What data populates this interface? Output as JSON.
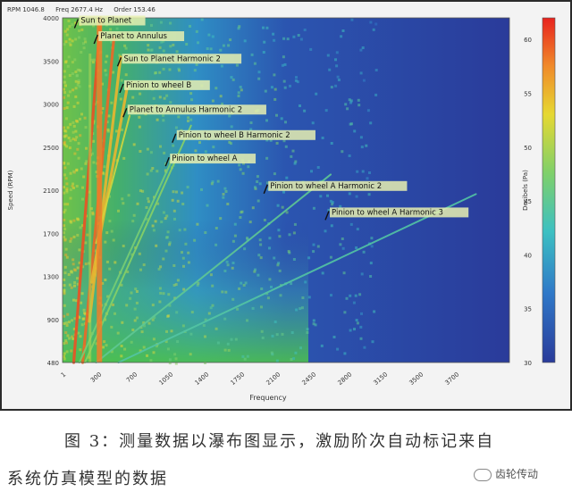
{
  "header_info": [
    "RPM 1046.8",
    "Freq 2677.4 Hz",
    "Order 153.46"
  ],
  "chart_data": {
    "type": "heatmap",
    "title": "",
    "xlabel": "Frequency",
    "ylabel": "Speed (RPM)",
    "colorbar_label": "Decibels (Pa)",
    "xlim": [
      0,
      4000
    ],
    "ylim": [
      480,
      4000
    ],
    "x_ticks": [
      "1",
      "300",
      "700",
      "1050",
      "1400",
      "1750",
      "2100",
      "2450",
      "2800",
      "3150",
      "3500",
      "3700"
    ],
    "y_ticks": [
      "4000",
      "3500",
      "3000",
      "2500",
      "2100",
      "1700",
      "1300",
      "900",
      "480"
    ],
    "colorbar_ticks": [
      "60",
      "55",
      "50",
      "45",
      "40",
      "35",
      "30"
    ],
    "colorbar_range": [
      30,
      62
    ],
    "colors": {
      "high": "#e8231e",
      "mid": "#e6d832",
      "low": "#2a3b9a"
    },
    "annotations": [
      {
        "text": "Sun to Planet",
        "freq": 155,
        "rpm": 3950
      },
      {
        "text": "Planet to Annulus",
        "freq": 330,
        "rpm": 3790
      },
      {
        "text": "Sun to Planet Harmonic 2",
        "freq": 540,
        "rpm": 3560
      },
      {
        "text": "Pinion to wheel B",
        "freq": 560,
        "rpm": 3290
      },
      {
        "text": "Planet to Annulus Harmonic 2",
        "freq": 590,
        "rpm": 3040
      },
      {
        "text": "Pinion to wheel B Harmonic 2",
        "freq": 1030,
        "rpm": 2780
      },
      {
        "text": "Pinion to wheel A",
        "freq": 970,
        "rpm": 2540
      },
      {
        "text": "Pinion to wheel A Harmonic 2",
        "freq": 1850,
        "rpm": 2260
      },
      {
        "text": "Pinion to wheel A Harmonic 3",
        "freq": 2400,
        "rpm": 1990
      }
    ],
    "order_lines": [
      {
        "name": "Sun to Planet",
        "orders": [
          [
            100,
            480
          ],
          [
            340,
            4000
          ]
        ],
        "level": 60
      },
      {
        "name": "Planet to Annulus",
        "orders": [
          [
            180,
            480
          ],
          [
            460,
            3800
          ]
        ],
        "level": 59
      },
      {
        "name": "Sun to Planet Harmonic 2",
        "orders": [
          [
            240,
            900
          ],
          [
            520,
            3600
          ]
        ],
        "level": 55
      },
      {
        "name": "Pinion to wheel B",
        "orders": [
          [
            260,
            1300
          ],
          [
            580,
            3300
          ]
        ],
        "level": 55
      },
      {
        "name": "Planet to Annulus Harmonic 2",
        "orders": [
          [
            300,
            1700
          ],
          [
            600,
            3000
          ]
        ],
        "level": 52
      },
      {
        "name": "Pinion to wheel B Harmonic 2",
        "orders": [
          [
            200,
            480
          ],
          [
            1150,
            2900
          ]
        ],
        "level": 48
      },
      {
        "name": "Pinion to wheel A",
        "orders": [
          [
            150,
            480
          ],
          [
            1000,
            2600
          ]
        ],
        "level": 47
      },
      {
        "name": "Pinion to wheel A Harmonic 2",
        "orders": [
          [
            300,
            480
          ],
          [
            2400,
            2400
          ]
        ],
        "level": 45
      },
      {
        "name": "Pinion to wheel A Harmonic 3",
        "orders": [
          [
            500,
            480
          ],
          [
            3700,
            2200
          ]
        ],
        "level": 44
      }
    ]
  },
  "caption": {
    "line1": "图 3：测量数据以瀑布图显示，激励阶次自动标记来自",
    "line2": "系统仿真模型的数据"
  },
  "brand": {
    "label": "齿轮传动"
  }
}
